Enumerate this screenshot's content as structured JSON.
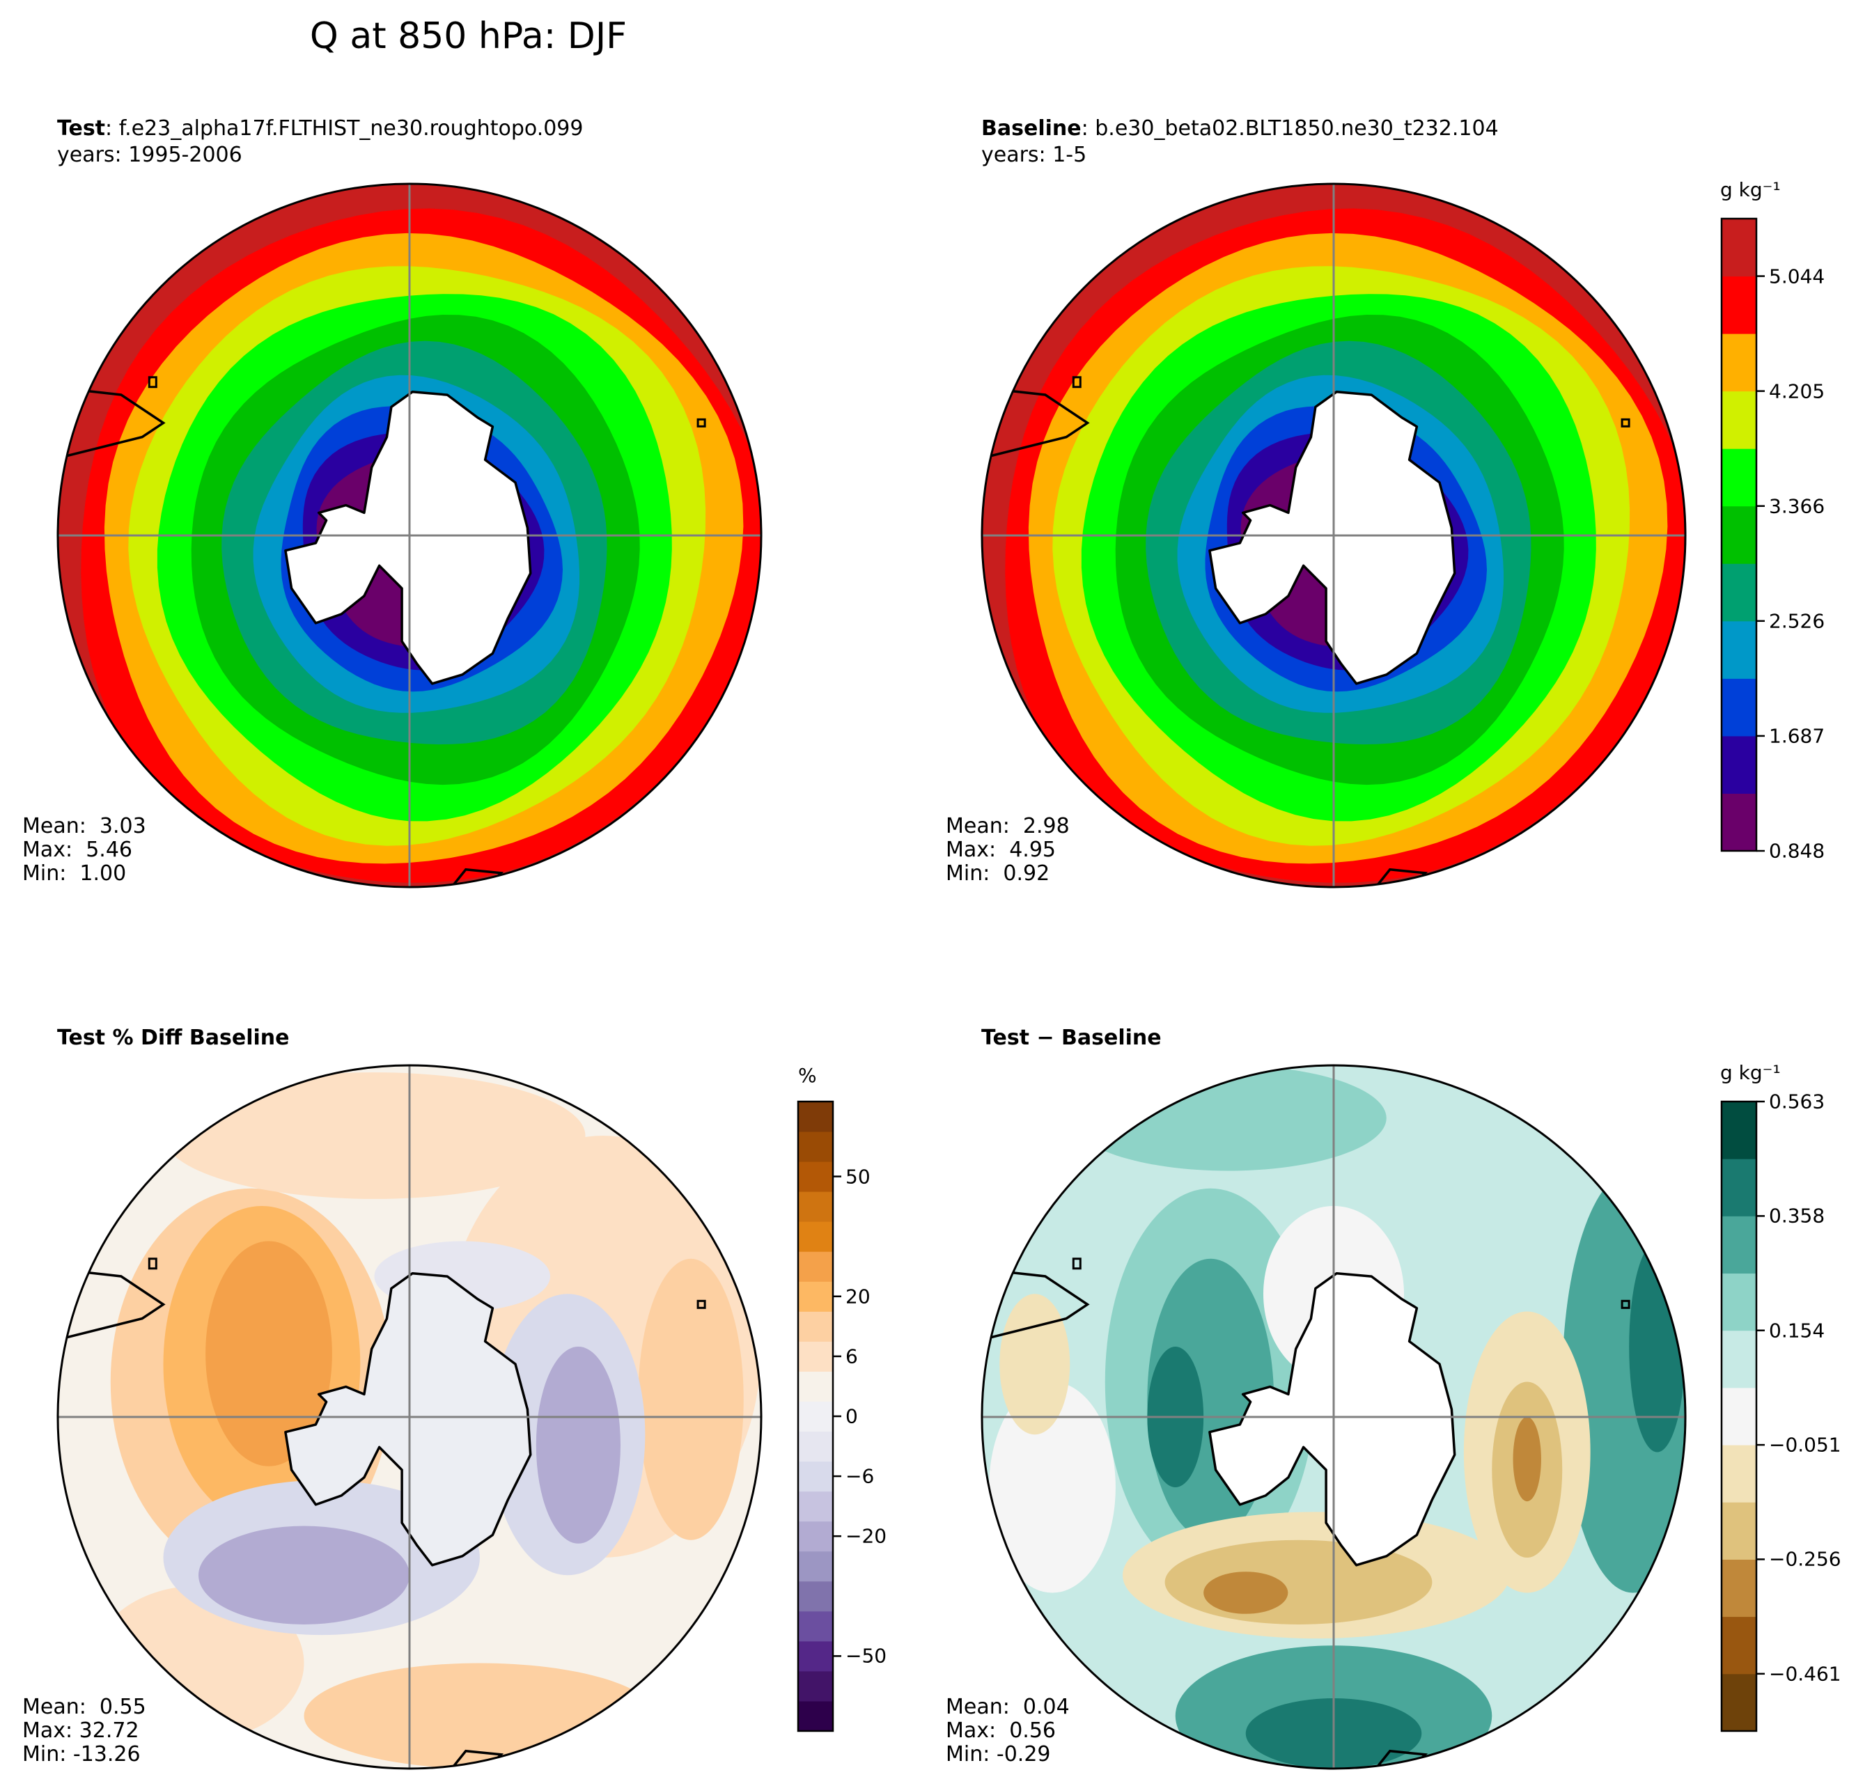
{
  "figure_title": "Q at 850 hPa: DJF",
  "panels": {
    "test": {
      "label": "Test",
      "case": "f.e23_alpha17f.FLTHIST_ne30.roughtopo.099",
      "years": "years: 1995-2006",
      "stats": {
        "mean": "Mean:  3.03",
        "max": "Max:  5.46",
        "min": "Min:  1.00"
      }
    },
    "baseline": {
      "label": "Baseline",
      "case": "b.e30_beta02.BLT1850.ne30_t232.104",
      "years": "years: 1-5",
      "stats": {
        "mean": "Mean:  2.98",
        "max": "Max:  4.95",
        "min": "Min:  0.92"
      }
    },
    "pct_diff": {
      "title": "Test % Diff Baseline",
      "stats": {
        "mean": "Mean:  0.55",
        "max": "Max: 32.72",
        "min": "Min: -13.26"
      }
    },
    "diff": {
      "title": "Test − Baseline",
      "stats": {
        "mean": "Mean:  0.04",
        "max": "Max:  0.56",
        "min": "Min: -0.29"
      }
    }
  },
  "colorbars": {
    "q": {
      "units": "g kg⁻¹",
      "ticks": [
        "5.044",
        "4.205",
        "3.366",
        "2.526",
        "1.687",
        "0.848"
      ],
      "range": [
        0.848,
        5.463
      ],
      "colors": [
        "#6a006a",
        "#2a00a0",
        "#0040d8",
        "#0098c8",
        "#00a070",
        "#00c000",
        "#00ff00",
        "#d0f000",
        "#ffb000",
        "#ff0000",
        "#c81e1e"
      ]
    },
    "pct": {
      "units": "%",
      "ticks": [
        "50",
        "20",
        "6",
        "0",
        "−6",
        "−20",
        "−50"
      ],
      "colors": [
        "#2d004b",
        "#421468",
        "#542788",
        "#6b4fa0",
        "#8073ac",
        "#9c96c3",
        "#b2abd2",
        "#c7c3e0",
        "#d8daeb",
        "#e6e6f0",
        "#f0f0f4",
        "#f7f2ea",
        "#fde0c4",
        "#fdd0a2",
        "#fdb863",
        "#f4a14a",
        "#e08214",
        "#cf7411",
        "#b35806",
        "#9a4b05",
        "#7f3b08"
      ]
    },
    "diff": {
      "units": "g kg⁻¹",
      "ticks": [
        "0.563",
        "0.358",
        "0.154",
        "−0.051",
        "−0.256",
        "−0.461"
      ],
      "colors": [
        "#6e420a",
        "#995710",
        "#c0883a",
        "#dfc27d",
        "#f2e2b8",
        "#f5f5f5",
        "#c7eae5",
        "#8ed3c7",
        "#4aa79a",
        "#1a7a70",
        "#014d40"
      ]
    }
  },
  "chart_data": [
    {
      "type": "heatmap",
      "title": "Test: f.e23_alpha17f.FLTHIST_ne30.roughtopo.099",
      "projection": "south polar stereographic",
      "field": "Q at 850 hPa (g kg⁻¹), filled contours",
      "levels": [
        0.848,
        1.268,
        1.687,
        2.107,
        2.526,
        2.946,
        3.366,
        3.785,
        4.205,
        4.624,
        5.044,
        5.463
      ],
      "zonal_bands_pole_to_edge": [
        "0.848-1.268",
        "1.268-1.687",
        "1.687-2.107",
        "2.107-2.526",
        "2.526-2.946",
        "2.946-3.366",
        "3.366-3.785",
        "3.785-4.205",
        "4.205-4.624",
        "4.624-5.044",
        "5.044-5.463"
      ],
      "mean": 3.03,
      "max": 5.46,
      "min": 1.0
    },
    {
      "type": "heatmap",
      "title": "Baseline: b.e30_beta02.BLT1850.ne30_t232.104",
      "projection": "south polar stereographic",
      "field": "Q at 850 hPa (g kg⁻¹), filled contours",
      "mean": 2.98,
      "max": 4.95,
      "min": 0.92
    },
    {
      "type": "heatmap",
      "title": "Test % Diff Baseline",
      "units": "%",
      "colorbar_ticks": [
        50,
        20,
        6,
        0,
        -6,
        -20,
        -50
      ],
      "mean": 0.55,
      "max": 32.72,
      "min": -13.26
    },
    {
      "type": "heatmap",
      "title": "Test − Baseline",
      "units": "g kg⁻¹",
      "colorbar_ticks": [
        0.563,
        0.358,
        0.154,
        -0.051,
        -0.256,
        -0.461
      ],
      "mean": 0.04,
      "max": 0.56,
      "min": -0.29
    }
  ]
}
